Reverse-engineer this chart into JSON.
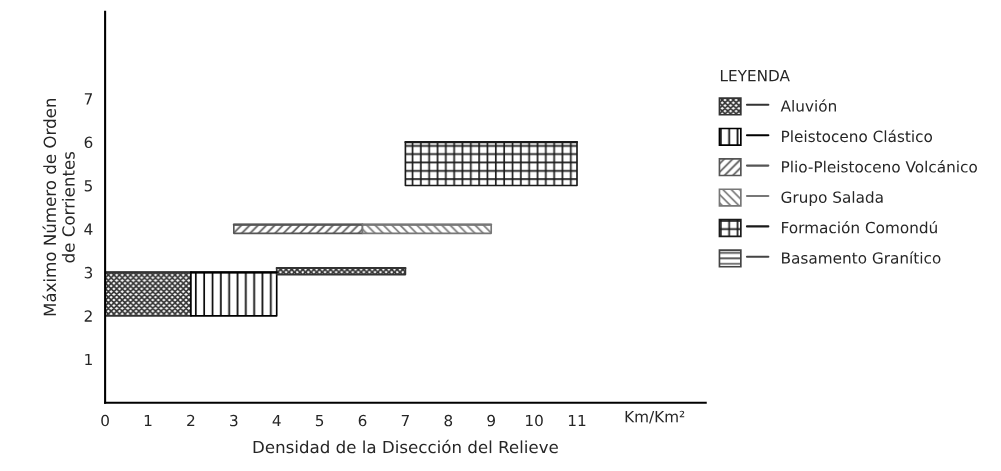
{
  "chart_data": {
    "type": "line",
    "xlabel": "Densidad de la Disección del Relieve",
    "ylabel": "Máximo Número de Orden\nde Corrientes",
    "legend_title": "LEYENDA",
    "legend": "right",
    "xlim": [
      0,
      14
    ],
    "ylim": [
      0,
      9
    ],
    "xticks": [
      0,
      1,
      2,
      3,
      4,
      5,
      6,
      7,
      8,
      9,
      10,
      11
    ],
    "yticks": [
      1,
      2,
      3,
      4,
      5,
      6,
      7
    ],
    "annotations": [
      "Km/Km²"
    ],
    "series": [
      {
        "name": "Aluvión",
        "color": "#333333",
        "x": [
          0,
          2
        ],
        "values": [
          3,
          3
        ],
        "lower": [
          2,
          2
        ],
        "upper": [
          3,
          3
        ]
      },
      {
        "name": "Pleistoceno Clástico",
        "color": "#000000",
        "x": [
          2,
          4
        ],
        "values": [
          3,
          3
        ],
        "lower": [
          2,
          2
        ],
        "upper": [
          3,
          3
        ]
      },
      {
        "name": "Plio-Pleistoceno Volcánico",
        "color": "#555555",
        "x": [
          3,
          6
        ],
        "values": [
          4.1,
          4.1
        ],
        "lower": [
          3.9,
          3.9
        ],
        "upper": [
          4.1,
          4.1
        ]
      },
      {
        "name": "Grupo Salada",
        "color": "#777777",
        "x": [
          6,
          9
        ],
        "values": [
          4.1,
          4.1
        ],
        "lower": [
          3.9,
          3.9
        ],
        "upper": [
          4.1,
          4.1
        ]
      },
      {
        "name": "Formación Comondú",
        "color": "#1a1a1a",
        "x": [
          7,
          11
        ],
        "values": [
          6,
          6
        ],
        "lower": [
          5,
          5
        ],
        "upper": [
          6,
          6
        ]
      },
      {
        "name": "Basamento Granítico",
        "color": "#444444"
      },
      {
        "color": "#333333",
        "x": [
          4,
          7
        ],
        "values": [
          3.1,
          3.1
        ],
        "lower": [
          2.95,
          2.95
        ],
        "upper": [
          3.1,
          3.1
        ]
      }
    ]
  }
}
